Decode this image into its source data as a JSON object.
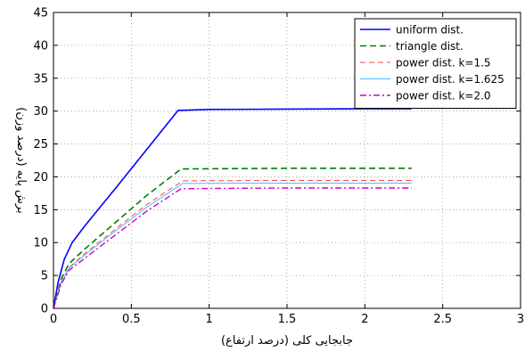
{
  "chart_data": {
    "type": "line",
    "title": "",
    "xlabel": "جابجایی کلی (درصد ارتفاع)",
    "ylabel": "برش پایه (درصد وزن)",
    "xlim": [
      0,
      3
    ],
    "ylim": [
      0,
      45
    ],
    "xticks": [
      0,
      0.5,
      1,
      1.5,
      2,
      2.5,
      3
    ],
    "yticks": [
      0,
      5,
      10,
      15,
      20,
      25,
      30,
      35,
      40,
      45
    ],
    "xtick_labels": [
      "0",
      "0.5",
      "1",
      "1.5",
      "2",
      "2.5",
      "3"
    ],
    "ytick_labels": [
      "0",
      "5",
      "10",
      "15",
      "20",
      "25",
      "30",
      "35",
      "40",
      "45"
    ],
    "grid": true,
    "legend_position": "top-right",
    "series": [
      {
        "name": "uniform dist.",
        "color": "#0000ff",
        "dash": "solid",
        "points": [
          [
            0,
            0
          ],
          [
            0.03,
            4
          ],
          [
            0.07,
            7.5
          ],
          [
            0.12,
            10
          ],
          [
            0.2,
            12.5
          ],
          [
            0.4,
            18.3
          ],
          [
            0.6,
            24.2
          ],
          [
            0.8,
            30.1
          ],
          [
            1.0,
            30.25
          ],
          [
            1.5,
            30.3
          ],
          [
            2.0,
            30.35
          ],
          [
            2.3,
            30.35
          ]
        ]
      },
      {
        "name": "triangle dist.",
        "color": "#008000",
        "dash": "dashed",
        "points": [
          [
            0,
            0
          ],
          [
            0.05,
            4.5
          ],
          [
            0.1,
            6.8
          ],
          [
            0.2,
            9
          ],
          [
            0.4,
            13.1
          ],
          [
            0.6,
            17.2
          ],
          [
            0.82,
            21.2
          ],
          [
            1.5,
            21.3
          ],
          [
            2.3,
            21.3
          ]
        ]
      },
      {
        "name": "power dist.  k=1.5",
        "color": "#ff4040",
        "dash": "dashed-thin",
        "points": [
          [
            0,
            0
          ],
          [
            0.05,
            4
          ],
          [
            0.1,
            6.2
          ],
          [
            0.2,
            8.3
          ],
          [
            0.4,
            12.1
          ],
          [
            0.6,
            15.8
          ],
          [
            0.83,
            19.4
          ],
          [
            1.5,
            19.45
          ],
          [
            2.3,
            19.45
          ]
        ]
      },
      {
        "name": "power dist.  k=1.625",
        "color": "#40c0ff",
        "dash": "solid-thin",
        "points": [
          [
            0,
            0
          ],
          [
            0.05,
            3.9
          ],
          [
            0.1,
            6.1
          ],
          [
            0.2,
            8.1
          ],
          [
            0.4,
            11.8
          ],
          [
            0.6,
            15.4
          ],
          [
            0.83,
            19.0
          ],
          [
            1.5,
            19.05
          ],
          [
            2.3,
            19.05
          ]
        ]
      },
      {
        "name": "power dist.  k=2.0",
        "color": "#cc00cc",
        "dash": "dashdot",
        "points": [
          [
            0,
            0
          ],
          [
            0.05,
            3.7
          ],
          [
            0.1,
            5.8
          ],
          [
            0.2,
            7.6
          ],
          [
            0.4,
            11.2
          ],
          [
            0.6,
            14.8
          ],
          [
            0.82,
            18.2
          ],
          [
            1.5,
            18.3
          ],
          [
            2.3,
            18.3
          ]
        ]
      }
    ]
  }
}
